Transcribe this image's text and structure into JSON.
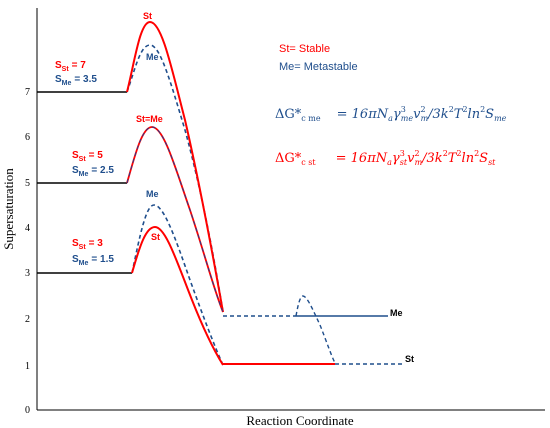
{
  "colors": {
    "stable": "#ff0000",
    "metastable": "#1f4e8c",
    "axis": "#000000",
    "baseline": "#000000",
    "shared": "#3a2a6e"
  },
  "axes": {
    "ylabel": "Supersaturation",
    "xlabel": "Reaction Coordinate",
    "yticks": [
      "0",
      "1",
      "2",
      "3",
      "4",
      "5",
      "6",
      "7"
    ]
  },
  "legend": {
    "stable": "St= Stable",
    "metastable": "Me= Metastable"
  },
  "groups": [
    {
      "st_label": "S",
      "st_sub": "St",
      "st_value": "= 7",
      "me_label": "S",
      "me_sub": "Me",
      "me_value": "= 3.5",
      "peak_st": "St",
      "peak_me": "Me"
    },
    {
      "st_label": "S",
      "st_sub": "St",
      "st_value": "= 5",
      "me_label": "S",
      "me_sub": "Me",
      "me_value": "= 2.5",
      "peak_shared": "St=Me"
    },
    {
      "st_label": "S",
      "st_sub": "St",
      "st_value": "= 3",
      "me_label": "S",
      "me_sub": "Me",
      "me_value": "= 1.5",
      "peak_st": "St",
      "peak_me": "Me"
    }
  ],
  "end_labels": {
    "me": "Me",
    "st": "St"
  },
  "equations": {
    "me": {
      "lhs_main": "ΔG*",
      "lhs_sub": "c me",
      "rhs": "= 16πN",
      "rhs_a": "a",
      "gamma": "γ",
      "gamma_sub": "me",
      "v": "v",
      "v_sub": "m",
      "tail": "/3k",
      "T": "T",
      "ln": "ln",
      "S": "S",
      "S_sub": "me"
    },
    "st": {
      "lhs_main": "ΔG*",
      "lhs_sub": "c st",
      "rhs": "= 16πN",
      "rhs_a": "a",
      "gamma": "γ",
      "gamma_sub": "st",
      "v": "v",
      "v_sub": "m",
      "tail": "/3k",
      "T": "T",
      "ln": "ln",
      "S": "S",
      "S_sub": "st"
    }
  }
}
